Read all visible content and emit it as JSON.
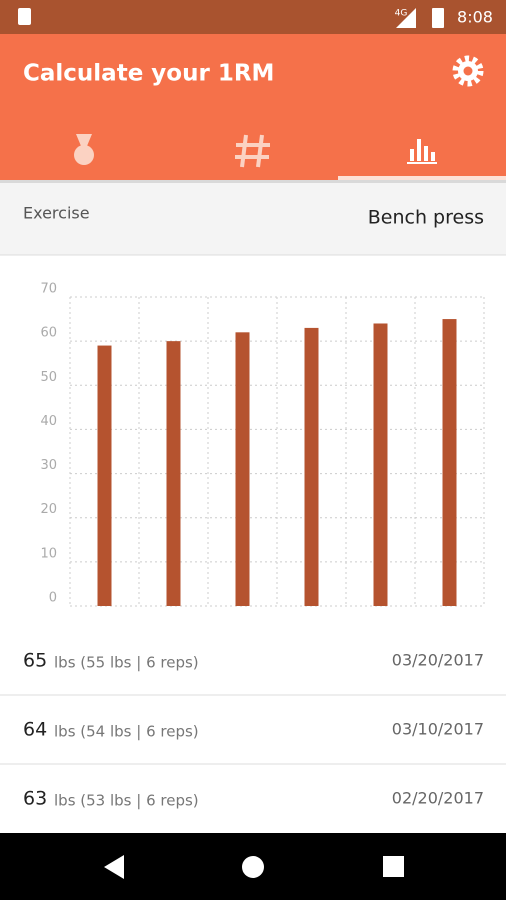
{
  "status_bar": {
    "network": "4G",
    "time": "8:08"
  },
  "app_bar": {
    "title": "Calculate your 1RM"
  },
  "exercise": {
    "label": "Exercise",
    "value": "Bench press"
  },
  "chart_data": {
    "type": "bar",
    "categories": [
      null,
      null,
      null,
      null,
      null,
      null
    ],
    "values": [
      59,
      60,
      62,
      63,
      64,
      65
    ],
    "color": "#b5532f",
    "ylim": [
      0,
      70
    ],
    "yticks": [
      0,
      10,
      20,
      30,
      40,
      50,
      60,
      70
    ],
    "grid": true
  },
  "list": [
    {
      "weight": "65",
      "detail": "lbs (55 lbs | 6 reps)",
      "date": "03/20/2017"
    },
    {
      "weight": "64",
      "detail": "lbs (54 lbs | 6 reps)",
      "date": "03/10/2017"
    },
    {
      "weight": "63",
      "detail": "lbs (53 lbs | 6 reps)",
      "date": "02/20/2017"
    }
  ]
}
